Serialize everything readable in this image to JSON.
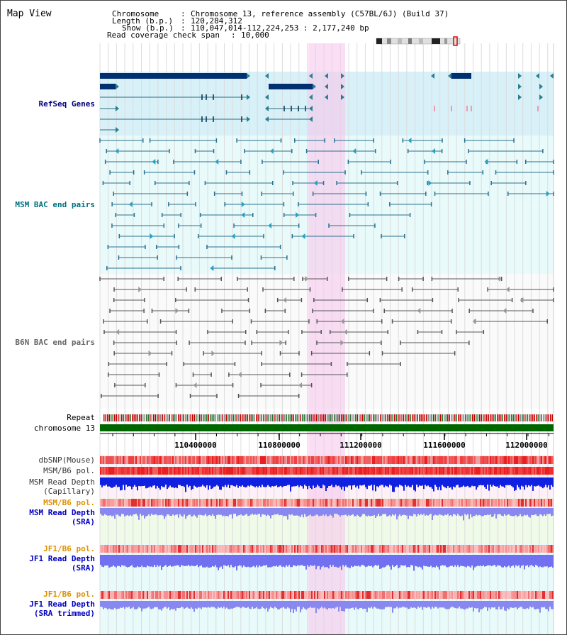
{
  "title": "Map View",
  "header": {
    "chromosome_label": "Chromosome",
    "chromosome_value": "Chromosome 13, reference assembly (C57BL/6J) (Build 37)",
    "length_label": "Length (b.p.)",
    "length_value": "120,284,312",
    "show_label": "Show (b.p.)",
    "show_value": "110,047,014-112,224,253 : 2,177,240 bp",
    "coverage_label": "Read coverage check span",
    "coverage_value": "10,000"
  },
  "tracks": {
    "refseq": "RefSeq Genes",
    "msm_bac": "MSM BAC end pairs",
    "b6n_bac": "B6N BAC end pairs",
    "repeat": "Repeat",
    "chromosome": "chromosome 13",
    "dbsnp": "dbSNP(Mouse)",
    "msm_b6_pol_1": "MSM/B6 pol.",
    "msm_depth_cap_1": "MSM Read Depth",
    "msm_depth_cap_2": "(Capillary)",
    "msm_b6_pol_2": "MSM/B6 pol.",
    "msm_depth_sra_1": "MSM Read Depth",
    "msm_depth_sra_2": "(SRA)",
    "jf1_pol_1": "JF1/B6 pol.",
    "jf1_depth_sra_1": "JF1 Read Depth",
    "jf1_depth_sra_2": "(SRA)",
    "jf1_pol_2": "JF1/B6 pol.",
    "jf1_depth_trim_1": "JF1 Read Depth",
    "jf1_depth_trim_2": "(SRA trimmed)"
  },
  "axis": {
    "ticks": [
      "110400000",
      "110800000",
      "111200000",
      "111600000",
      "112000000"
    ]
  },
  "colors": {
    "refseq_label": "#000080",
    "msm_label": "#007080",
    "b6n_label": "#666666",
    "orange_label": "#e09000",
    "blue_label": "#0000c0",
    "chrom_bar": "#006600",
    "highlight": "#f8d8f0"
  }
}
